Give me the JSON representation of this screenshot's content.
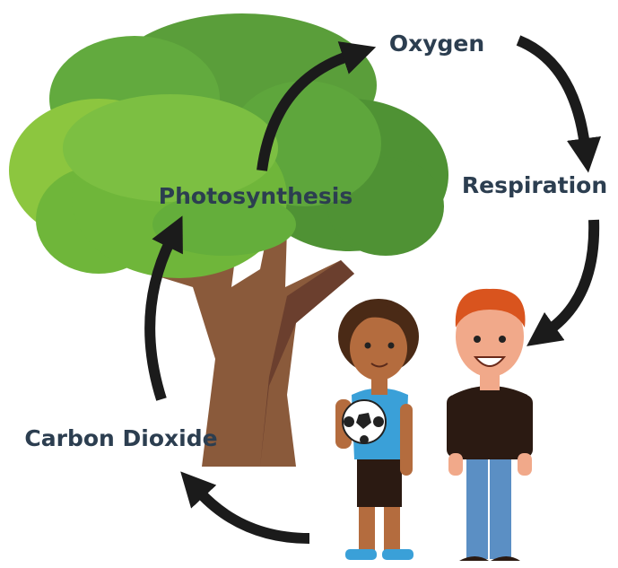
{
  "nodes": [
    {
      "label": "Oxygen"
    },
    {
      "label": "Respiration"
    },
    {
      "label": "Photosynthesis"
    },
    {
      "label": "Carbon Dioxide"
    }
  ]
}
